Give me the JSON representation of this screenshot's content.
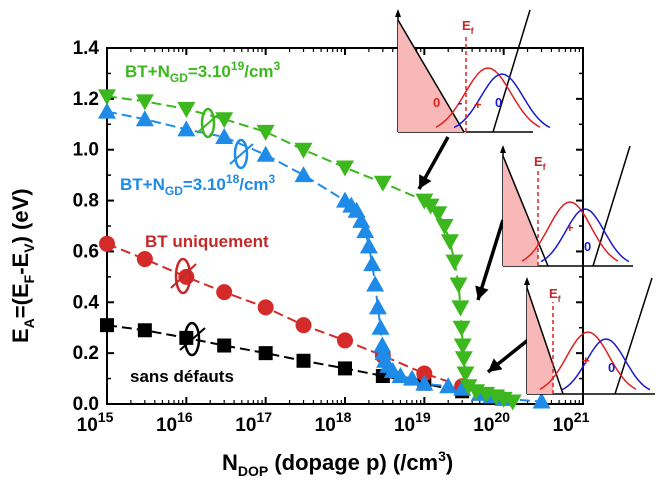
{
  "chart_data": {
    "type": "scatter",
    "xlabel": {
      "main": "N",
      "sub": "DOP",
      "rest": " (dopage p) (/cm",
      "sup": "3",
      "end": ")"
    },
    "ylabel": {
      "p1": "E",
      "s1": "A",
      "p2": "=(E",
      "s2": "F",
      "p3": "-E",
      "s3": "V",
      "p4": ") (eV)"
    },
    "xscale": "log",
    "xlim": [
      1000000000000000.0,
      1e+21
    ],
    "ylim": [
      0,
      1.4
    ],
    "x_ticks": [
      {
        "base": "10",
        "exp": "15",
        "value": 1000000000000000.0
      },
      {
        "base": "10",
        "exp": "16",
        "value": 1e+16
      },
      {
        "base": "10",
        "exp": "17",
        "value": 1e+17
      },
      {
        "base": "10",
        "exp": "18",
        "value": 1e+18
      },
      {
        "base": "10",
        "exp": "19",
        "value": 1e+19
      },
      {
        "base": "10",
        "exp": "20",
        "value": 1e+20
      },
      {
        "base": "10",
        "exp": "21",
        "value": 1e+21
      }
    ],
    "y_ticks": [
      "0.0",
      "0.2",
      "0.4",
      "0.6",
      "0.8",
      "1.0",
      "1.2",
      "1.4"
    ],
    "series": [
      {
        "name": "sans défauts",
        "color": "#000000",
        "marker": "square",
        "x": [
          1000000000000000.0,
          3000000000000000.0,
          1e+16,
          3e+16,
          1e+17,
          3e+17,
          1e+18,
          3e+18,
          1e+19,
          3e+19
        ],
        "y": [
          0.31,
          0.29,
          0.26,
          0.23,
          0.2,
          0.17,
          0.14,
          0.11,
          0.08,
          0.05
        ]
      },
      {
        "name": "BT uniquement",
        "color": "#d42a2a",
        "marker": "circle",
        "x": [
          1000000000000000.0,
          3000000000000000.0,
          1e+16,
          3e+16,
          1e+17,
          3e+17,
          1e+18,
          3e+18,
          1e+19,
          3e+19
        ],
        "y": [
          0.63,
          0.57,
          0.5,
          0.44,
          0.38,
          0.31,
          0.25,
          0.19,
          0.12,
          0.07
        ]
      },
      {
        "name": "BT+N_GD=3.10^18/cm^3",
        "color": "#1e8be8",
        "marker": "triangle-up",
        "x": [
          1000000000000000.0,
          3000000000000000.0,
          1e+16,
          3e+16,
          1e+17,
          3e+17,
          1e+18,
          1.2e+18,
          1.4e+18,
          1.6e+18,
          1.8e+18,
          2e+18,
          2.2e+18,
          2.4e+18,
          2.6e+18,
          2.8e+18,
          2.95e+18,
          3.05e+18,
          3.2e+18,
          3.5e+18,
          4e+18,
          5e+18,
          7e+18,
          1e+19,
          2e+19,
          3e+19,
          5e+19,
          7e+19,
          1e+20,
          3e+20
        ],
        "y": [
          1.15,
          1.12,
          1.08,
          1.05,
          0.98,
          0.9,
          0.8,
          0.78,
          0.76,
          0.72,
          0.68,
          0.62,
          0.55,
          0.47,
          0.38,
          0.3,
          0.23,
          0.2,
          0.17,
          0.15,
          0.13,
          0.11,
          0.1,
          0.08,
          0.07,
          0.06,
          0.04,
          0.03,
          0.02,
          0.01
        ]
      },
      {
        "name": "BT+N_GD=3.10^19/cm^3",
        "color": "#3cb81e",
        "marker": "triangle-down",
        "x": [
          1000000000000000.0,
          3000000000000000.0,
          1e+16,
          3e+16,
          1e+17,
          3e+17,
          1e+18,
          3e+18,
          1e+19,
          1.2e+19,
          1.5e+19,
          1.8e+19,
          2.1e+19,
          2.4e+19,
          2.7e+19,
          2.85e+19,
          2.95e+19,
          3.05e+19,
          3.15e+19,
          3.3e+19,
          3.6e+19,
          4.5e+19,
          6e+19,
          8e+19,
          1e+20,
          1.3e+20
        ],
        "y": [
          1.21,
          1.19,
          1.16,
          1.12,
          1.07,
          1.0,
          0.93,
          0.87,
          0.8,
          0.78,
          0.75,
          0.7,
          0.64,
          0.56,
          0.47,
          0.38,
          0.3,
          0.23,
          0.18,
          0.12,
          0.07,
          0.05,
          0.04,
          0.03,
          0.02,
          0.01
        ]
      }
    ],
    "annotations": {
      "green": {
        "p1": "BT+N",
        "sub": "GD",
        "p2": "=3.10",
        "sup": "19",
        "p3": "/cm",
        "sup2": "3"
      },
      "blue": {
        "p1": "BT+N",
        "sub": "GD",
        "p2": "=3.10",
        "sup": "18",
        "p3": "/cm",
        "sup2": "3"
      },
      "red": "BT uniquement",
      "black": "sans défauts"
    },
    "insets": [
      {
        "ef": "E",
        "ef_sub": "f",
        "labels": [
          "0",
          "-",
          "+",
          "0"
        ]
      },
      {
        "ef": "E",
        "ef_sub": "f",
        "labels": [
          "+",
          "0"
        ]
      },
      {
        "ef": "E",
        "ef_sub": "f",
        "labels": [
          "+",
          "0"
        ]
      }
    ]
  }
}
